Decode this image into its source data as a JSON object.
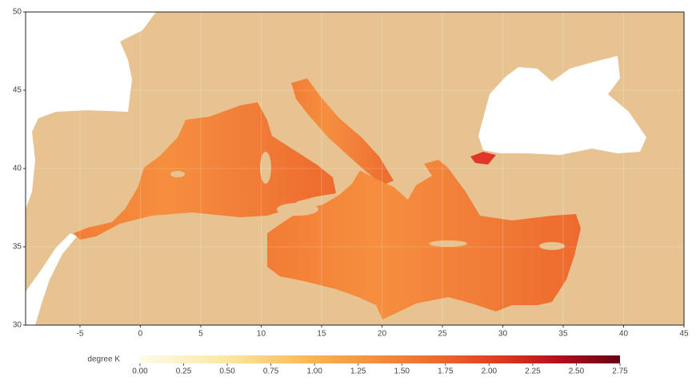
{
  "chart_data": {
    "type": "map",
    "xlim": [
      -9.5,
      45
    ],
    "ylim": [
      30,
      50
    ],
    "xticks": [
      -5,
      0,
      5,
      10,
      15,
      20,
      25,
      30,
      35,
      40,
      45
    ],
    "yticks": [
      30,
      35,
      40,
      45,
      50
    ],
    "grid": true,
    "colorbar": {
      "label": "degree K",
      "lim": [
        0,
        2.75
      ],
      "ticks": [
        {
          "value": 0,
          "label": "0.00"
        },
        {
          "value": 0.25,
          "label": "0.25"
        },
        {
          "value": 0.5,
          "label": "0.50"
        },
        {
          "value": 0.75,
          "label": "0.75"
        },
        {
          "value": 1,
          "label": "1.00"
        },
        {
          "value": 1.25,
          "label": "1.25"
        },
        {
          "value": 1.5,
          "label": "1.50"
        },
        {
          "value": 1.75,
          "label": "1.75"
        },
        {
          "value": 2,
          "label": "2.00"
        },
        {
          "value": 2.25,
          "label": "2.25"
        },
        {
          "value": 2.5,
          "label": "2.50"
        },
        {
          "value": 2.75,
          "label": "2.75"
        }
      ]
    }
  }
}
